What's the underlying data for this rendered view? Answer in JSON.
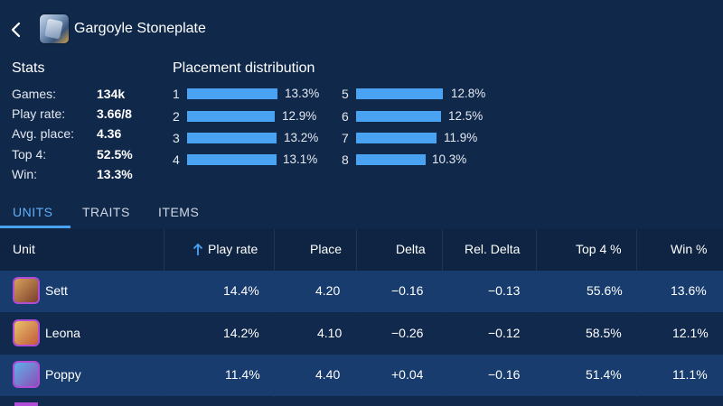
{
  "header": {
    "title": "Gargoyle Stoneplate"
  },
  "stats": {
    "heading": "Stats",
    "rows": [
      {
        "label": "Games:",
        "value": "134k"
      },
      {
        "label": "Play rate:",
        "value": "3.66/8"
      },
      {
        "label": "Avg. place:",
        "value": "4.36"
      },
      {
        "label": "Top 4:",
        "value": "52.5%"
      },
      {
        "label": "Win:",
        "value": "13.3%"
      }
    ]
  },
  "placement": {
    "heading": "Placement distribution",
    "items": [
      {
        "place": "1",
        "pct": "13.3%",
        "value": 13.3
      },
      {
        "place": "2",
        "pct": "12.9%",
        "value": 12.9
      },
      {
        "place": "3",
        "pct": "13.2%",
        "value": 13.2
      },
      {
        "place": "4",
        "pct": "13.1%",
        "value": 13.1
      },
      {
        "place": "5",
        "pct": "12.8%",
        "value": 12.8
      },
      {
        "place": "6",
        "pct": "12.5%",
        "value": 12.5
      },
      {
        "place": "7",
        "pct": "11.9%",
        "value": 11.9
      },
      {
        "place": "8",
        "pct": "10.3%",
        "value": 10.3
      }
    ],
    "bar_color": "#4aa3f2"
  },
  "tabs": [
    {
      "label": "UNITS",
      "active": true
    },
    {
      "label": "TRAITS",
      "active": false
    },
    {
      "label": "ITEMS",
      "active": false
    }
  ],
  "table": {
    "columns": [
      "Unit",
      "Play rate",
      "Place",
      "Delta",
      "Rel. Delta",
      "Top 4 %",
      "Win %"
    ],
    "sorted_column": "Play rate",
    "sort_icon": "arrow-up-icon",
    "rows": [
      {
        "unit": "Sett",
        "play_rate": "14.4%",
        "place": "4.20",
        "delta": "−0.16",
        "rel_delta": "−0.13",
        "top4": "55.6%",
        "win": "13.6%",
        "icon_colors": [
          "#d7a15a",
          "#7a3e2c"
        ]
      },
      {
        "unit": "Leona",
        "play_rate": "14.2%",
        "place": "4.10",
        "delta": "−0.26",
        "rel_delta": "−0.12",
        "top4": "58.5%",
        "win": "12.1%",
        "icon_colors": [
          "#e8c36a",
          "#c25a3a"
        ]
      },
      {
        "unit": "Poppy",
        "play_rate": "11.4%",
        "place": "4.40",
        "delta": "+0.04",
        "rel_delta": "−0.16",
        "top4": "51.4%",
        "win": "11.1%",
        "icon_colors": [
          "#5fb0e8",
          "#8a4fb8"
        ]
      }
    ]
  },
  "colors": {
    "background": "#10284a",
    "accent": "#4aa3f2",
    "row_highlight": "#173c6d",
    "unit_border": "#b04cd8"
  }
}
